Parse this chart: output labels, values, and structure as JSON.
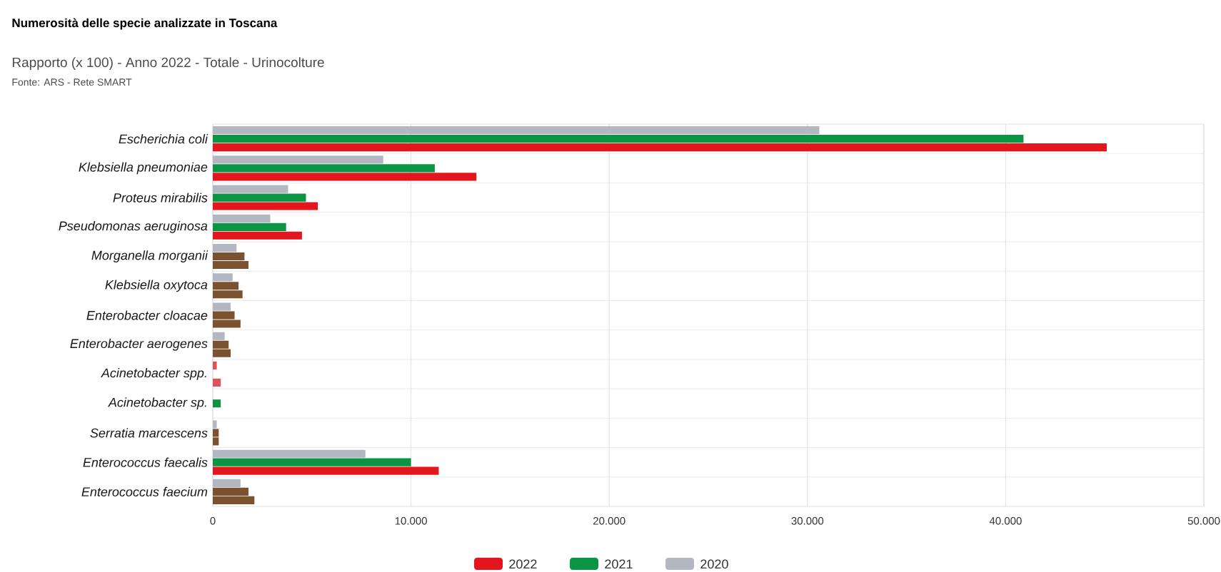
{
  "chart_data": {
    "type": "bar",
    "orientation": "horizontal",
    "title": "Numerosità delle specie analizzate in Toscana",
    "subtitle": "Rapporto (x 100) - Anno 2022 - Totale - Urinocolture",
    "annotations": [
      "Fonte: ARS - Rete SMART"
    ],
    "categories": [
      "Escherichia coli",
      "Klebsiella pneumoniae",
      "Proteus mirabilis",
      "Pseudomonas aeruginosa",
      "Morganella morganii",
      "Klebsiella oxytoca",
      "Enterobacter cloacae",
      "Enterobacter aerogenes",
      "Acinetobacter spp.",
      "Acinetobacter sp.",
      "Serratia marcescens",
      "Enterococcus faecalis",
      "Enterococcus faecium"
    ],
    "series": [
      {
        "name": "2020",
        "color": "#b3b7c2",
        "values": [
          30600,
          8600,
          3800,
          2900,
          1200,
          1000,
          900,
          600,
          200,
          null,
          200,
          7700,
          1400
        ],
        "colors": [
          "#b3b7c2",
          "#b3b7c2",
          "#b3b7c2",
          "#b3b7c2",
          "#b3b7c2",
          "#b3b7c2",
          "#b3b7c2",
          "#b3b7c2",
          "#e05257",
          "#b3b7c2",
          "#b3b7c2",
          "#b3b7c2",
          "#b3b7c2"
        ]
      },
      {
        "name": "2021",
        "color": "#0b9444",
        "values": [
          40900,
          11200,
          4700,
          3700,
          1600,
          1300,
          1100,
          800,
          null,
          400,
          300,
          10000,
          1800
        ],
        "colors": [
          "#0b9444",
          "#0b9444",
          "#0b9444",
          "#0b9444",
          "#7b5230",
          "#7b5230",
          "#7b5230",
          "#7b5230",
          "#0b9444",
          "#0b9444",
          "#7b5230",
          "#0b9444",
          "#7b5230"
        ]
      },
      {
        "name": "2022",
        "color": "#e3161e",
        "values": [
          45100,
          13300,
          5300,
          4500,
          1800,
          1500,
          1400,
          900,
          400,
          null,
          300,
          11400,
          2100
        ],
        "colors": [
          "#e3161e",
          "#e3161e",
          "#e3161e",
          "#e3161e",
          "#7b5230",
          "#7b5230",
          "#7b5230",
          "#7b5230",
          "#e05257",
          "#e3161e",
          "#7b5230",
          "#e3161e",
          "#7b5230"
        ]
      }
    ],
    "xlim": [
      0,
      50000
    ],
    "xticks": [
      0,
      {
        "value": 10000,
        "label": "10.000"
      },
      {
        "value": 20000,
        "label": "20.000"
      },
      {
        "value": 30000,
        "label": "30.000"
      },
      {
        "value": 40000,
        "label": "40.000"
      },
      {
        "value": 50000,
        "label": "50.000"
      }
    ],
    "grid": true,
    "legend": "bottom"
  }
}
